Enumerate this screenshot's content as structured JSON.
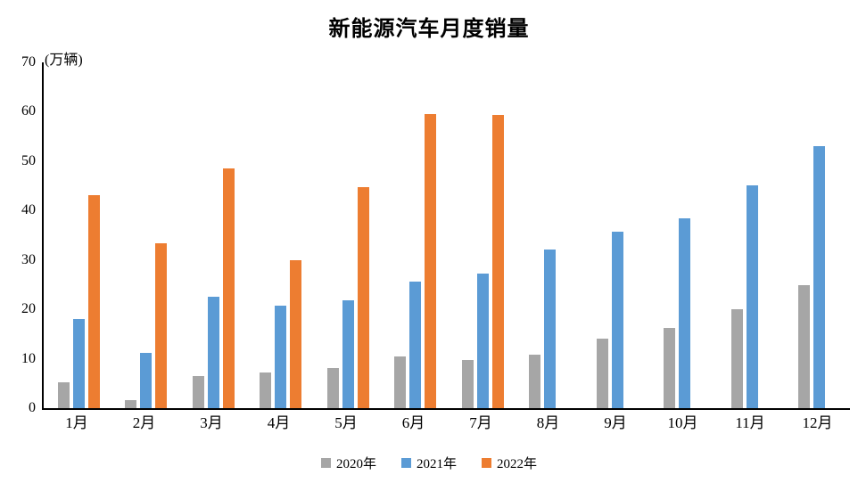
{
  "chart_data": {
    "type": "bar",
    "title": "新能源汽车月度销量",
    "unit": "(万辆)",
    "categories": [
      "1月",
      "2月",
      "3月",
      "4月",
      "5月",
      "6月",
      "7月",
      "8月",
      "9月",
      "10月",
      "11月",
      "12月"
    ],
    "series": [
      {
        "name": "2020年",
        "color": "#a6a6a6",
        "values": [
          5.3,
          1.7,
          6.5,
          7.2,
          8.2,
          10.4,
          9.8,
          10.9,
          14.1,
          16.2,
          20.0,
          24.9
        ]
      },
      {
        "name": "2021年",
        "color": "#5b9bd5",
        "values": [
          18.0,
          11.1,
          22.6,
          20.7,
          21.8,
          25.6,
          27.2,
          32.1,
          35.7,
          38.4,
          45.1,
          53.1
        ]
      },
      {
        "name": "2022年",
        "color": "#ed7d31",
        "values": [
          43.2,
          33.4,
          48.5,
          30.0,
          44.7,
          59.6,
          59.3,
          null,
          null,
          null,
          null,
          null
        ]
      }
    ],
    "ylim": [
      0,
      70
    ],
    "ytick_step": 10,
    "grid": false,
    "legend_position": "bottom",
    "axis_color": "#000000",
    "background_color": "#ffffff"
  }
}
